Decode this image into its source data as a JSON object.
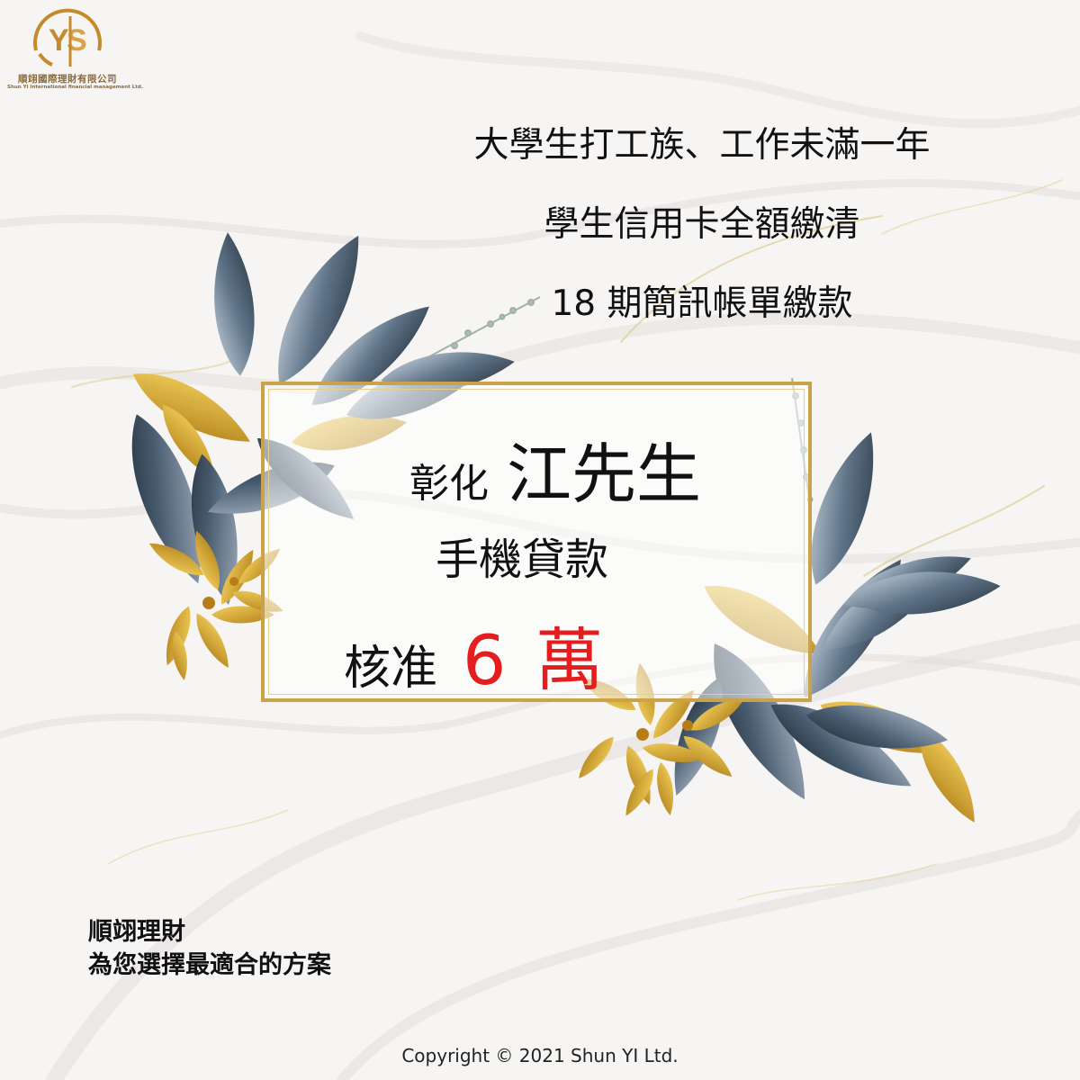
{
  "logo": {
    "company_name": "順翊國際理財有限公司",
    "company_name_en": "Shun Yi International financial management Ltd."
  },
  "headlines": [
    "大學生打工族、工作未滿一年",
    "學生信用卡全額繳清",
    "18 期簡訊帳單繳款"
  ],
  "case": {
    "location": "彰化",
    "customer": "江先生",
    "loan_type": "手機貸款",
    "approval_label": "核准",
    "approval_amount": "6 萬"
  },
  "slogan": {
    "line1": "順翊理財",
    "line2": "為您選擇最適合的方案"
  },
  "copyright": "Copyright © 2021 Shun YI Ltd.",
  "colors": {
    "accent_gold": "#c9a24a",
    "amount_red": "#e41e1e",
    "leaf_blue": "#3f5266",
    "leaf_gold": "#d8a628"
  }
}
